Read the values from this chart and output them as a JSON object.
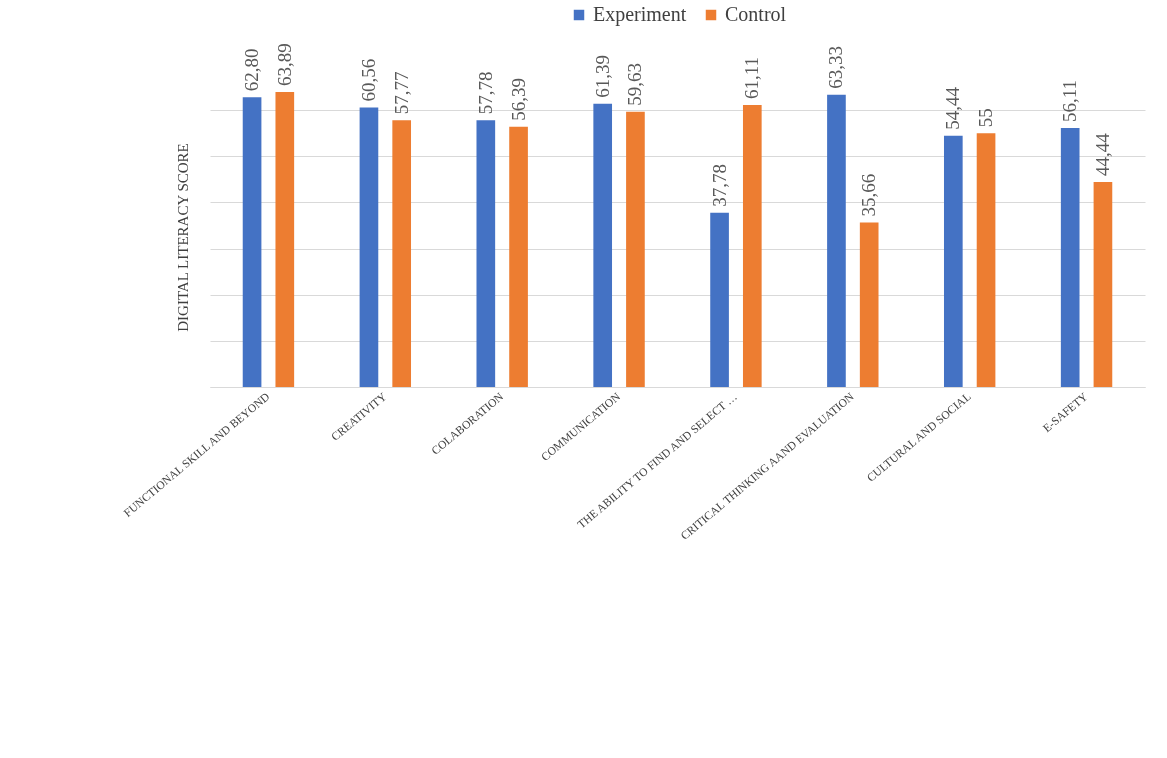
{
  "chart_data": {
    "type": "bar",
    "ylabel": "DIGITAL LITERACY SCORE",
    "categories": [
      "FUNCTIONAL SKILL AND BEYOND",
      "CREATIVITY",
      "COLABORATION",
      "COMMUNICATION",
      "THE ABILITY TO FIND AND SELECT …",
      "CRITICAL THINKING AAND EVALUATION",
      "CULTURAL AND SOCIAL",
      "E-SAFETY"
    ],
    "series": [
      {
        "name": "Experiment",
        "color": "#4472c4",
        "values": [
          62.8,
          60.56,
          57.78,
          61.39,
          37.78,
          63.33,
          54.44,
          56.11
        ],
        "value_labels": [
          "62,80",
          "60,56",
          "57,78",
          "61,39",
          "37,78",
          "63,33",
          "54,44",
          "56,11"
        ]
      },
      {
        "name": "Control",
        "color": "#ed7d31",
        "values": [
          63.89,
          57.77,
          56.39,
          59.63,
          61.11,
          35.66,
          55,
          44.44
        ],
        "value_labels": [
          "63,89",
          "57,77",
          "56,39",
          "59,63",
          "61,11",
          "35,66",
          "55",
          "44,44"
        ]
      }
    ],
    "tick_labels": "x",
    "grid": "y",
    "legend": "top"
  }
}
